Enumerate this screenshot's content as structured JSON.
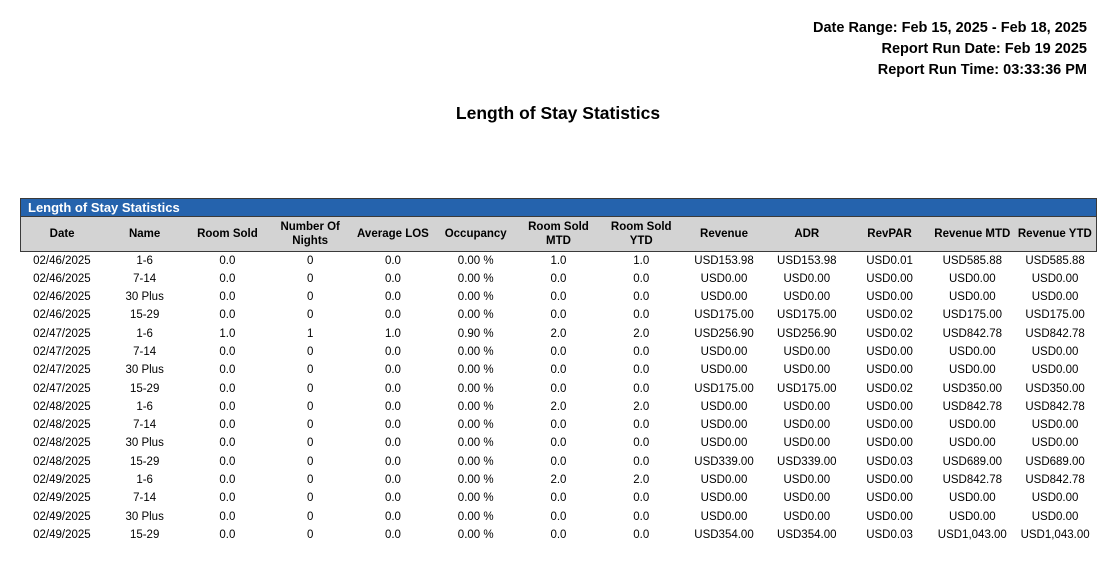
{
  "meta": {
    "date_range": "Date Range: Feb 15, 2025 - Feb 18, 2025",
    "report_run_date": "Report Run Date: Feb 19 2025",
    "report_run_time": "Report Run Time: 03:33:36 PM"
  },
  "title": "Length of Stay Statistics",
  "table": {
    "section_title": "Length of Stay Statistics",
    "columns": [
      "Date",
      "Name",
      "Room Sold",
      "Number Of\nNights",
      "Average LOS",
      "Occupancy",
      "Room Sold\nMTD",
      "Room Sold\nYTD",
      "Revenue",
      "ADR",
      "RevPAR",
      "Revenue MTD",
      "Revenue YTD"
    ],
    "rows": [
      [
        "02/46/2025",
        "1-6",
        "0.0",
        "0",
        "0.0",
        "0.00 %",
        "1.0",
        "1.0",
        "USD153.98",
        "USD153.98",
        "USD0.01",
        "USD585.88",
        "USD585.88"
      ],
      [
        "02/46/2025",
        "7-14",
        "0.0",
        "0",
        "0.0",
        "0.00 %",
        "0.0",
        "0.0",
        "USD0.00",
        "USD0.00",
        "USD0.00",
        "USD0.00",
        "USD0.00"
      ],
      [
        "02/46/2025",
        "30 Plus",
        "0.0",
        "0",
        "0.0",
        "0.00 %",
        "0.0",
        "0.0",
        "USD0.00",
        "USD0.00",
        "USD0.00",
        "USD0.00",
        "USD0.00"
      ],
      [
        "02/46/2025",
        "15-29",
        "0.0",
        "0",
        "0.0",
        "0.00 %",
        "0.0",
        "0.0",
        "USD175.00",
        "USD175.00",
        "USD0.02",
        "USD175.00",
        "USD175.00"
      ],
      [
        "02/47/2025",
        "1-6",
        "1.0",
        "1",
        "1.0",
        "0.90 %",
        "2.0",
        "2.0",
        "USD256.90",
        "USD256.90",
        "USD0.02",
        "USD842.78",
        "USD842.78"
      ],
      [
        "02/47/2025",
        "7-14",
        "0.0",
        "0",
        "0.0",
        "0.00 %",
        "0.0",
        "0.0",
        "USD0.00",
        "USD0.00",
        "USD0.00",
        "USD0.00",
        "USD0.00"
      ],
      [
        "02/47/2025",
        "30 Plus",
        "0.0",
        "0",
        "0.0",
        "0.00 %",
        "0.0",
        "0.0",
        "USD0.00",
        "USD0.00",
        "USD0.00",
        "USD0.00",
        "USD0.00"
      ],
      [
        "02/47/2025",
        "15-29",
        "0.0",
        "0",
        "0.0",
        "0.00 %",
        "0.0",
        "0.0",
        "USD175.00",
        "USD175.00",
        "USD0.02",
        "USD350.00",
        "USD350.00"
      ],
      [
        "02/48/2025",
        "1-6",
        "0.0",
        "0",
        "0.0",
        "0.00 %",
        "2.0",
        "2.0",
        "USD0.00",
        "USD0.00",
        "USD0.00",
        "USD842.78",
        "USD842.78"
      ],
      [
        "02/48/2025",
        "7-14",
        "0.0",
        "0",
        "0.0",
        "0.00 %",
        "0.0",
        "0.0",
        "USD0.00",
        "USD0.00",
        "USD0.00",
        "USD0.00",
        "USD0.00"
      ],
      [
        "02/48/2025",
        "30 Plus",
        "0.0",
        "0",
        "0.0",
        "0.00 %",
        "0.0",
        "0.0",
        "USD0.00",
        "USD0.00",
        "USD0.00",
        "USD0.00",
        "USD0.00"
      ],
      [
        "02/48/2025",
        "15-29",
        "0.0",
        "0",
        "0.0",
        "0.00 %",
        "0.0",
        "0.0",
        "USD339.00",
        "USD339.00",
        "USD0.03",
        "USD689.00",
        "USD689.00"
      ],
      [
        "02/49/2025",
        "1-6",
        "0.0",
        "0",
        "0.0",
        "0.00 %",
        "2.0",
        "2.0",
        "USD0.00",
        "USD0.00",
        "USD0.00",
        "USD842.78",
        "USD842.78"
      ],
      [
        "02/49/2025",
        "7-14",
        "0.0",
        "0",
        "0.0",
        "0.00 %",
        "0.0",
        "0.0",
        "USD0.00",
        "USD0.00",
        "USD0.00",
        "USD0.00",
        "USD0.00"
      ],
      [
        "02/49/2025",
        "30 Plus",
        "0.0",
        "0",
        "0.0",
        "0.00 %",
        "0.0",
        "0.0",
        "USD0.00",
        "USD0.00",
        "USD0.00",
        "USD0.00",
        "USD0.00"
      ],
      [
        "02/49/2025",
        "15-29",
        "0.0",
        "0",
        "0.0",
        "0.00 %",
        "0.0",
        "0.0",
        "USD354.00",
        "USD354.00",
        "USD0.03",
        "USD1,043.00",
        "USD1,043.00"
      ]
    ]
  },
  "colors": {
    "section_header_bg": "#2563ad",
    "column_header_bg": "#d3d3d3",
    "border": "#3a3a3a"
  }
}
